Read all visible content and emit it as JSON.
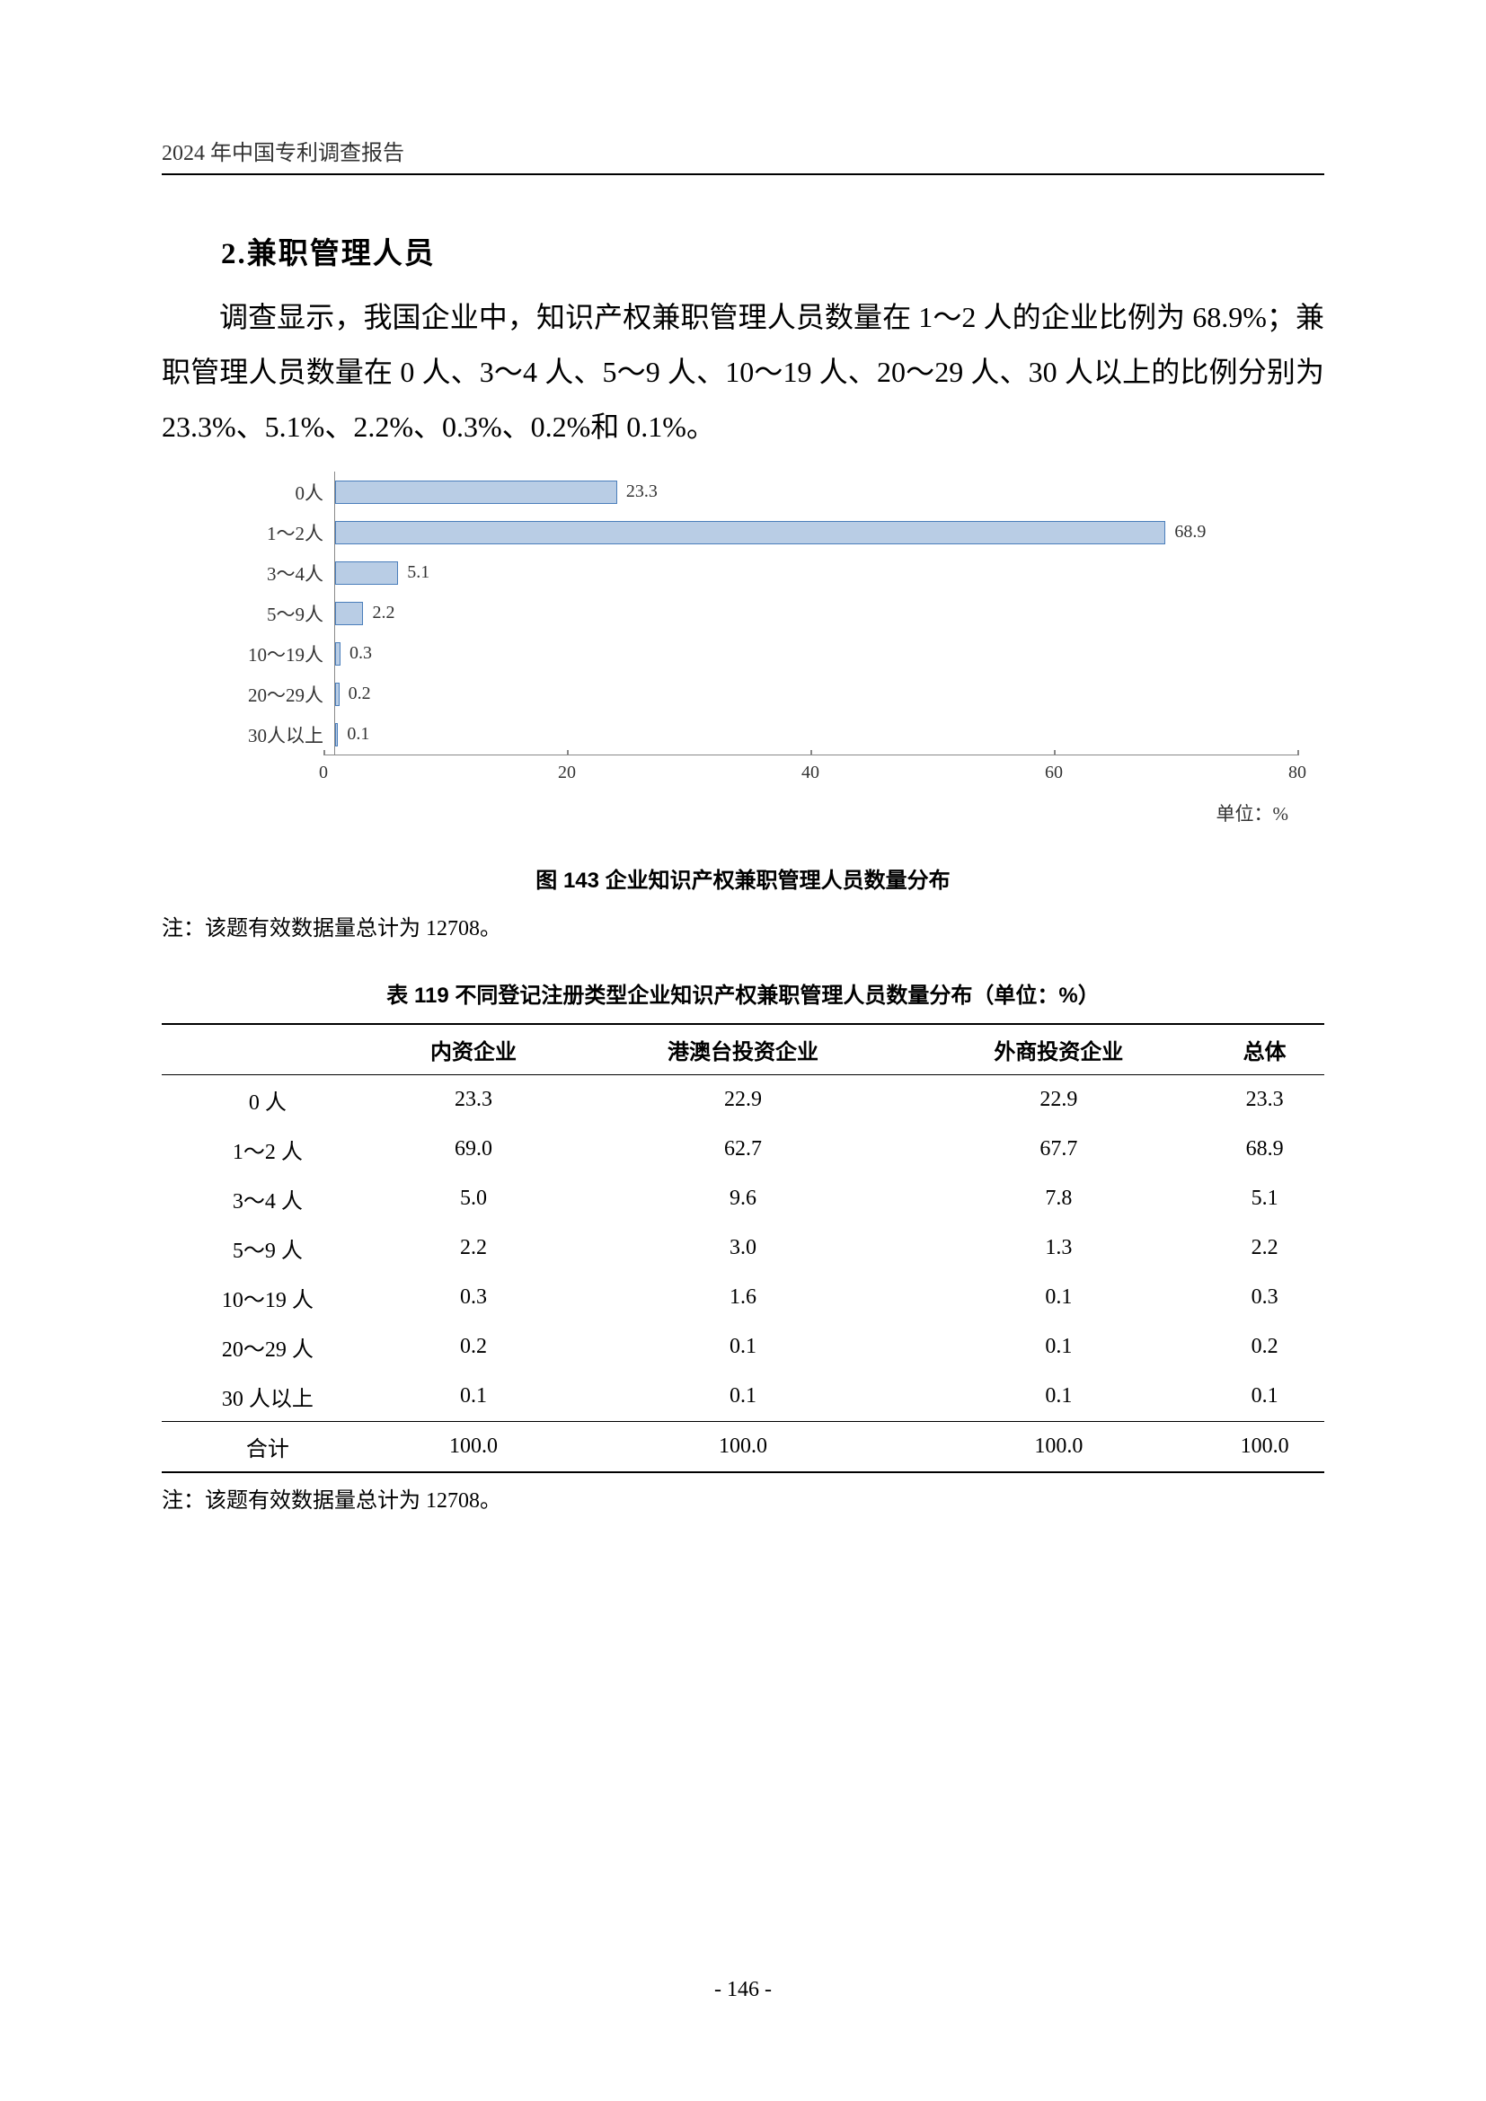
{
  "header": {
    "title": "2024 年中国专利调查报告"
  },
  "section": {
    "number_title": "2.兼职管理人员"
  },
  "paragraph": {
    "text": "调查显示，我国企业中，知识产权兼职管理人员数量在 1～2 人的企业比例为 68.9%；兼职管理人员数量在 0 人、3～4 人、5～9 人、10～19 人、20～29 人、30 人以上的比例分别为 23.3%、5.1%、2.2%、0.3%、0.2%和 0.1%。"
  },
  "chart": {
    "type": "bar-horizontal",
    "categories": [
      "0人",
      "1～2人",
      "3～4人",
      "5～9人",
      "10～19人",
      "20～29人",
      "30人以上"
    ],
    "values": [
      23.3,
      68.9,
      5.1,
      2.2,
      0.3,
      0.2,
      0.1
    ],
    "value_labels": [
      "23.3",
      "68.9",
      "5.1",
      "2.2",
      "0.3",
      "0.2",
      "0.1"
    ],
    "xlim": [
      0,
      80
    ],
    "xticks": [
      0,
      20,
      40,
      60,
      80
    ],
    "bar_fill": "#b9cde5",
    "bar_border": "#4a7ebb",
    "axis_color": "#888888",
    "label_fontsize": 21,
    "value_fontsize": 20,
    "unit_label": "单位：%"
  },
  "figure": {
    "caption": "图 143  企业知识产权兼职管理人员数量分布",
    "note": "注：该题有效数据量总计为 12708。"
  },
  "table": {
    "caption": "表 119  不同登记注册类型企业知识产权兼职管理人员数量分布（单位：%）",
    "columns": [
      "",
      "内资企业",
      "港澳台投资企业",
      "外商投资企业",
      "总体"
    ],
    "rows": [
      [
        "0 人",
        "23.3",
        "22.9",
        "22.9",
        "23.3"
      ],
      [
        "1～2 人",
        "69.0",
        "62.7",
        "67.7",
        "68.9"
      ],
      [
        "3～4 人",
        "5.0",
        "9.6",
        "7.8",
        "5.1"
      ],
      [
        "5～9 人",
        "2.2",
        "3.0",
        "1.3",
        "2.2"
      ],
      [
        "10～19 人",
        "0.3",
        "1.6",
        "0.1",
        "0.3"
      ],
      [
        "20～29 人",
        "0.2",
        "0.1",
        "0.1",
        "0.2"
      ],
      [
        "30 人以上",
        "0.1",
        "0.1",
        "0.1",
        "0.1"
      ]
    ],
    "total_row": [
      "合计",
      "100.0",
      "100.0",
      "100.0",
      "100.0"
    ],
    "note": "注：该题有效数据量总计为 12708。"
  },
  "page_number": "- 146 -"
}
